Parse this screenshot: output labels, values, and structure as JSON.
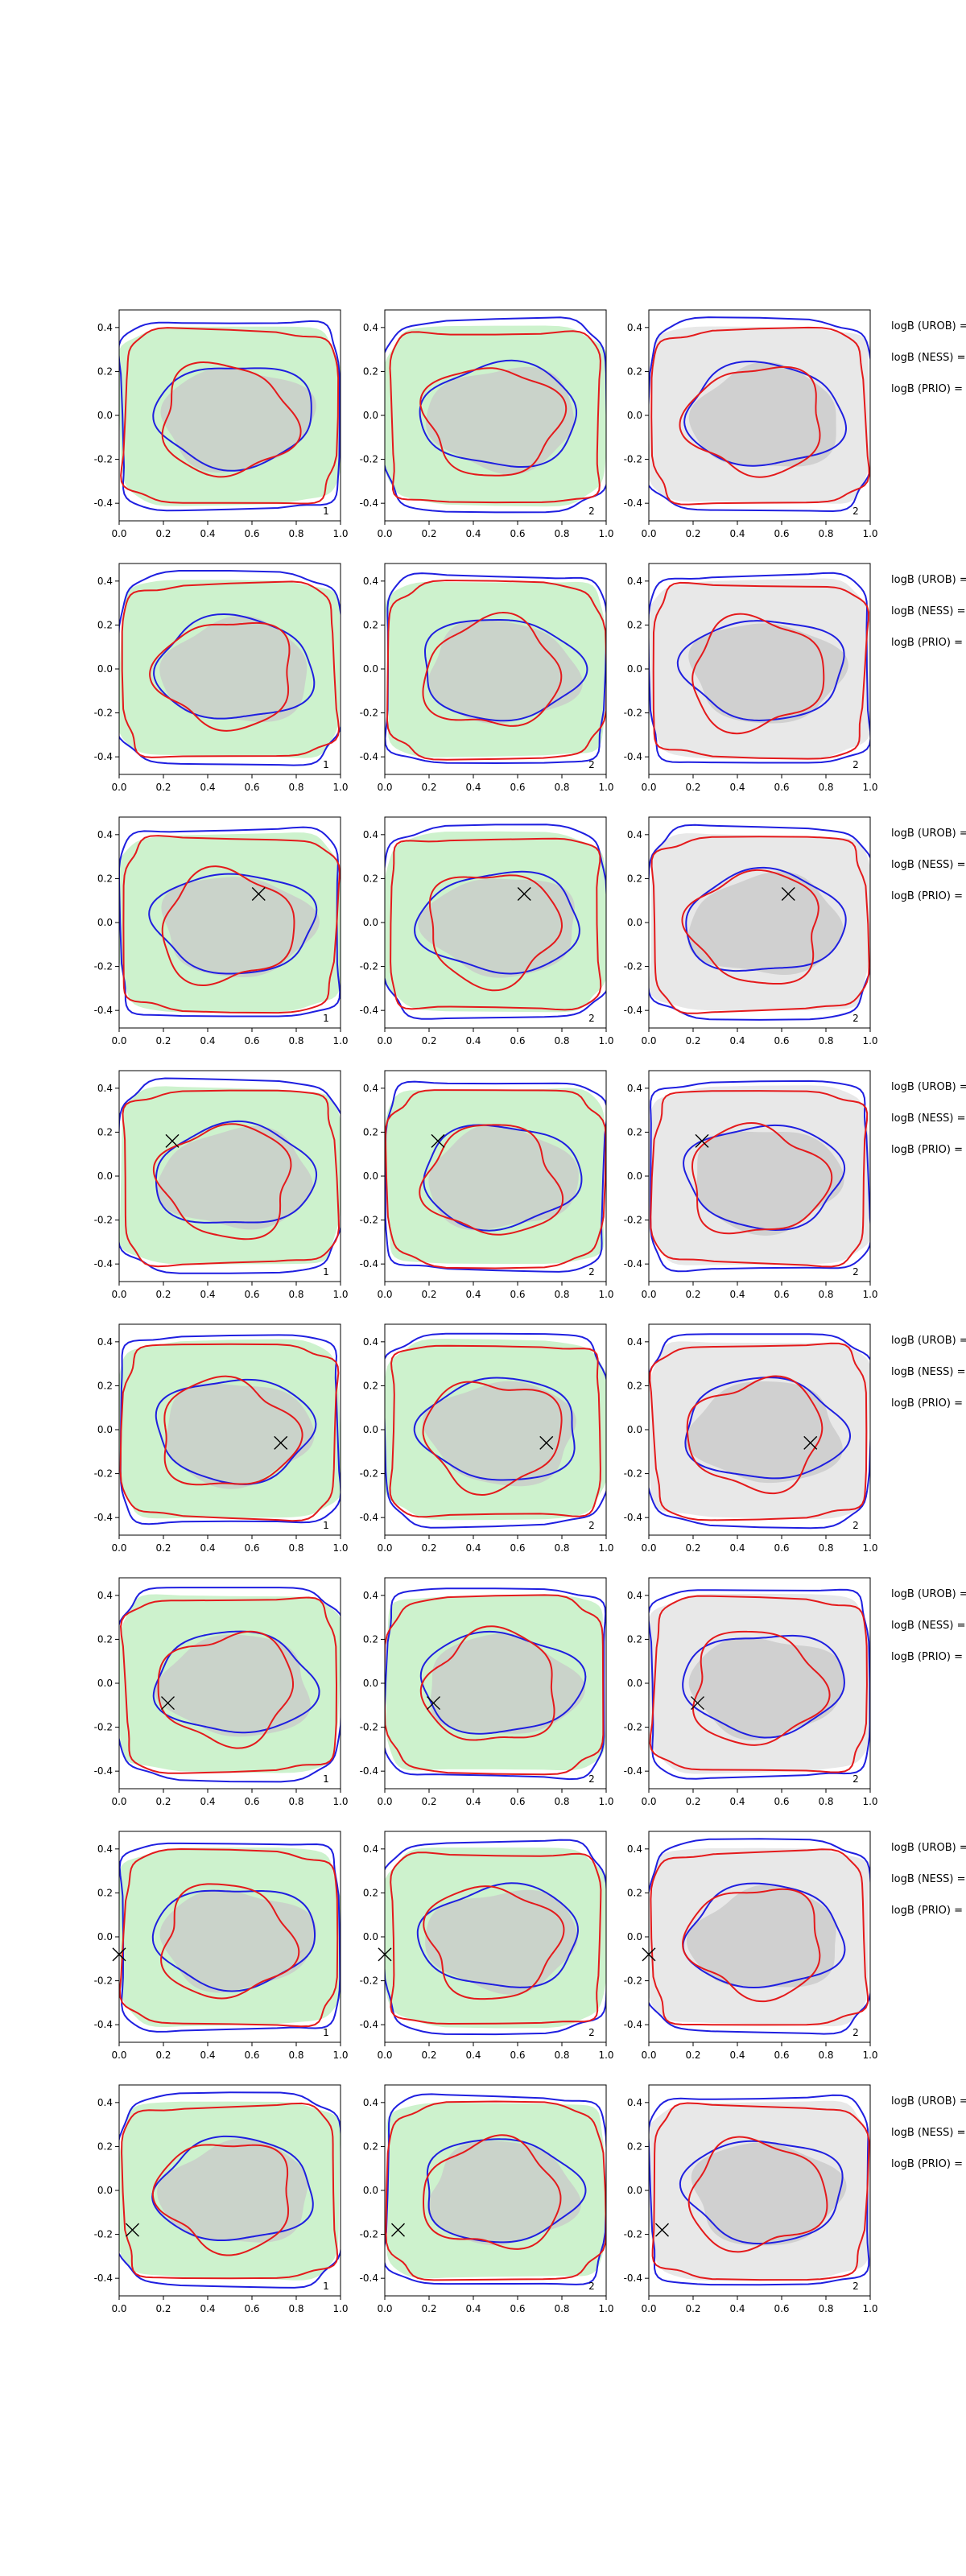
{
  "chart_data": {
    "type": "contour-grid",
    "rows": 8,
    "cols": 3,
    "x_ticks": [
      "0.0",
      "0.2",
      "0.4",
      "0.6",
      "0.8",
      "1.0"
    ],
    "y_ticks": [
      "0.4",
      "0.2",
      "0.0",
      "-0.2",
      "-0.4"
    ],
    "x_tick_values": [
      0,
      0.2,
      0.4,
      0.6,
      0.8,
      1.0
    ],
    "y_tick_values": [
      0.4,
      0.2,
      0.0,
      -0.2,
      -0.4
    ],
    "xlim": [
      0,
      1
    ],
    "ylim": [
      -0.48,
      0.48
    ],
    "panel_index_labels": [
      "1",
      "2",
      "2"
    ],
    "panel_fill_colors": [
      "#cdf2cd",
      "#cdf2cd",
      "#e8e8e8"
    ],
    "inner_fill_color": "#c8c8c8",
    "series_colors": {
      "red": "#e41a1c",
      "blue": "#1f1fe0"
    },
    "legend_labels": [
      "logB (UROB) =",
      "logB (NESS) =",
      "logB (PRIO) ="
    ],
    "markers": [
      null,
      null,
      {
        "x": 0.63,
        "y": 0.13
      },
      {
        "x": 0.24,
        "y": 0.16
      },
      {
        "x": 0.73,
        "y": -0.06
      },
      {
        "x": 0.22,
        "y": -0.09
      },
      {
        "x": 0.0,
        "y": -0.08
      },
      {
        "x": 0.06,
        "y": -0.18
      }
    ]
  }
}
